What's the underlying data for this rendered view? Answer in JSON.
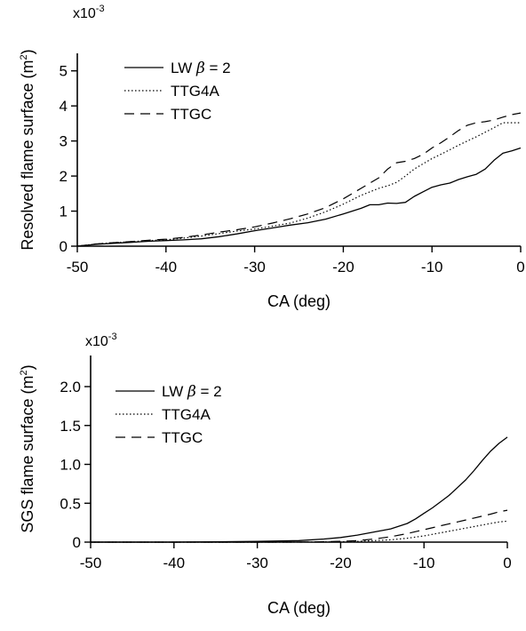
{
  "chart_data": [
    {
      "type": "line",
      "xlabel": "CA (deg)",
      "ylabel_main": "Resolved flame surface (m",
      "ylabel_sup": "2",
      "ylabel_end": ")",
      "multiplier_base": "x10",
      "multiplier_exp": "-3",
      "xlim": [
        -50,
        0
      ],
      "ylim": [
        0,
        5.5
      ],
      "x_ticks": [
        -50,
        -40,
        -30,
        -20,
        -10,
        0
      ],
      "x_tick_labels": [
        "-50",
        "-40",
        "-30",
        "-20",
        "-10",
        "0"
      ],
      "y_ticks": [
        0,
        1,
        2,
        3,
        4,
        5
      ],
      "y_tick_labels": [
        "0",
        "1",
        "2",
        "3",
        "4",
        "5"
      ],
      "grid": false,
      "legend_position": "top-left",
      "legend_sym_beta": "β",
      "series": [
        {
          "name": "LW",
          "name_suffix": " = 2",
          "style": "solid",
          "x": [
            -50,
            -48,
            -46,
            -44,
            -42,
            -40,
            -38,
            -36,
            -34,
            -32,
            -30,
            -28,
            -26,
            -24,
            -22,
            -20,
            -18,
            -17,
            -16,
            -15,
            -14,
            -13,
            -12,
            -11,
            -10,
            -9,
            -8,
            -7,
            -6,
            -5,
            -4,
            -3,
            -2,
            -1,
            0
          ],
          "values": [
            0.0,
            0.05,
            0.08,
            0.11,
            0.14,
            0.16,
            0.18,
            0.21,
            0.27,
            0.35,
            0.44,
            0.52,
            0.6,
            0.67,
            0.77,
            0.92,
            1.08,
            1.18,
            1.18,
            1.23,
            1.22,
            1.25,
            1.42,
            1.55,
            1.68,
            1.75,
            1.8,
            1.9,
            1.98,
            2.05,
            2.2,
            2.45,
            2.65,
            2.72,
            2.8
          ]
        },
        {
          "name": "TTG4A",
          "style": "dotted",
          "x": [
            -50,
            -48,
            -46,
            -44,
            -42,
            -40,
            -38,
            -36,
            -34,
            -32,
            -30,
            -28,
            -26,
            -24,
            -22,
            -20,
            -18,
            -16,
            -15,
            -14,
            -13,
            -12,
            -11,
            -10,
            -9,
            -8,
            -7,
            -6,
            -5,
            -4,
            -3,
            -2,
            -1,
            0
          ],
          "values": [
            0.0,
            0.06,
            0.1,
            0.13,
            0.16,
            0.18,
            0.23,
            0.29,
            0.36,
            0.43,
            0.49,
            0.57,
            0.66,
            0.8,
            0.98,
            1.2,
            1.45,
            1.65,
            1.72,
            1.82,
            2.0,
            2.2,
            2.35,
            2.5,
            2.62,
            2.75,
            2.88,
            3.0,
            3.12,
            3.25,
            3.38,
            3.52,
            3.52,
            3.52
          ]
        },
        {
          "name": "TTGC",
          "style": "dashed",
          "x": [
            -50,
            -48,
            -46,
            -44,
            -42,
            -40,
            -38,
            -36,
            -34,
            -32,
            -30,
            -28,
            -26,
            -24,
            -22,
            -20,
            -18,
            -16,
            -15,
            -14,
            -13,
            -12,
            -11,
            -10,
            -9,
            -8,
            -7,
            -6,
            -5,
            -4,
            -3,
            -2,
            -1,
            0
          ],
          "values": [
            0.0,
            0.06,
            0.1,
            0.13,
            0.17,
            0.2,
            0.25,
            0.32,
            0.4,
            0.47,
            0.55,
            0.66,
            0.78,
            0.92,
            1.1,
            1.35,
            1.65,
            1.95,
            2.2,
            2.38,
            2.42,
            2.5,
            2.62,
            2.8,
            2.95,
            3.12,
            3.3,
            3.45,
            3.52,
            3.55,
            3.6,
            3.68,
            3.75,
            3.8
          ]
        }
      ]
    },
    {
      "type": "line",
      "xlabel": "CA (deg)",
      "ylabel_main": "SGS flame surface (m",
      "ylabel_sup": "2",
      "ylabel_end": ")",
      "multiplier_base": "x10",
      "multiplier_exp": "-3",
      "xlim": [
        -50,
        0
      ],
      "ylim": [
        0,
        2.4
      ],
      "x_ticks": [
        -50,
        -40,
        -30,
        -20,
        -10,
        0
      ],
      "x_tick_labels": [
        "-50",
        "-40",
        "-30",
        "-20",
        "-10",
        "0"
      ],
      "y_ticks": [
        0,
        0.5,
        1.0,
        1.5,
        2.0
      ],
      "y_tick_labels": [
        "0",
        "0.5",
        "1.0",
        "1.5",
        "2.0"
      ],
      "grid": false,
      "legend_position": "top-left",
      "legend_sym_beta": "β",
      "series": [
        {
          "name": "LW",
          "name_suffix": " = 2",
          "style": "solid",
          "x": [
            -50,
            -45,
            -40,
            -35,
            -30,
            -25,
            -22,
            -20,
            -18,
            -16,
            -14,
            -12,
            -11,
            -10,
            -9,
            -8,
            -7,
            -6,
            -5,
            -4,
            -3,
            -2,
            -1,
            0
          ],
          "values": [
            0.0,
            0.0,
            0.0,
            0.005,
            0.01,
            0.02,
            0.04,
            0.06,
            0.09,
            0.13,
            0.17,
            0.24,
            0.3,
            0.37,
            0.44,
            0.52,
            0.6,
            0.7,
            0.8,
            0.92,
            1.05,
            1.17,
            1.27,
            1.35
          ]
        },
        {
          "name": "TTG4A",
          "style": "dotted",
          "x": [
            -50,
            -40,
            -30,
            -25,
            -20,
            -18,
            -16,
            -14,
            -12,
            -10,
            -8,
            -6,
            -4,
            -2,
            -1,
            0
          ],
          "values": [
            0.0,
            0.0,
            0.0,
            0.0,
            0.005,
            0.01,
            0.02,
            0.03,
            0.05,
            0.08,
            0.12,
            0.16,
            0.2,
            0.24,
            0.26,
            0.27
          ]
        },
        {
          "name": "TTGC",
          "style": "dashed",
          "x": [
            -50,
            -40,
            -30,
            -25,
            -20,
            -18,
            -16,
            -14,
            -12,
            -10,
            -8,
            -6,
            -4,
            -2,
            -1,
            0
          ],
          "values": [
            0.0,
            0.0,
            0.0,
            0.0,
            0.01,
            0.02,
            0.04,
            0.07,
            0.11,
            0.16,
            0.21,
            0.26,
            0.31,
            0.36,
            0.39,
            0.41
          ]
        }
      ]
    }
  ]
}
